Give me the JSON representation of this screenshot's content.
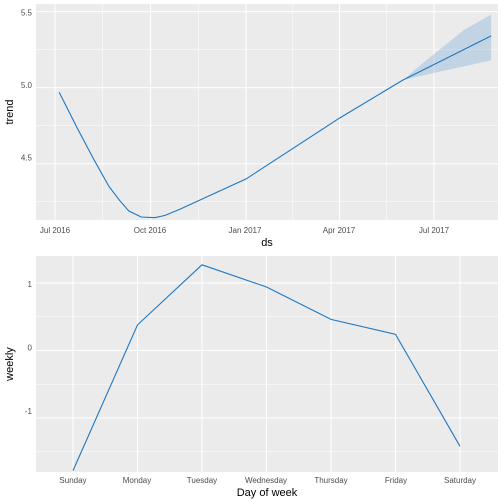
{
  "chart_data": [
    {
      "type": "line",
      "xlabel": "ds",
      "ylabel": "trend",
      "x_ticks": [
        "Jul 2016",
        "Oct 2016",
        "Jan 2017",
        "Apr 2017",
        "Jul 2017"
      ],
      "y_ticks": [
        "4.5",
        "5.0",
        "5.5"
      ],
      "ylim": [
        4.13,
        5.55
      ],
      "grid": true,
      "line_color": "#1f78c1",
      "band_color": "#1f78c1",
      "series": [
        {
          "x": [
            "2016-07-05",
            "2016-07-22",
            "2016-08-08",
            "2016-08-22",
            "2016-09-01",
            "2016-09-10",
            "2016-09-22",
            "2016-10-05",
            "2016-10-15",
            "2016-10-29",
            "2017-01-01",
            "2017-04-01",
            "2017-06-01",
            "2017-07-15",
            "2017-08-25"
          ],
          "y": [
            4.97,
            4.74,
            4.52,
            4.35,
            4.26,
            4.19,
            4.15,
            4.145,
            4.16,
            4.2,
            4.4,
            4.8,
            5.05,
            5.2,
            5.34
          ]
        }
      ],
      "uncertainty_band": {
        "x": [
          "2017-06-01",
          "2017-06-20",
          "2017-07-10",
          "2017-07-30",
          "2017-08-25"
        ],
        "lower": [
          5.05,
          5.08,
          5.11,
          5.14,
          5.18
        ],
        "upper": [
          5.05,
          5.16,
          5.27,
          5.38,
          5.48
        ]
      }
    },
    {
      "type": "line",
      "xlabel": "Day of week",
      "ylabel": "weekly",
      "categories": [
        "Sunday",
        "Monday",
        "Tuesday",
        "Wednesday",
        "Thursday",
        "Friday",
        "Saturday"
      ],
      "y_ticks": [
        "1",
        "0",
        "-1"
      ],
      "ylim": [
        -1.8,
        1.4
      ],
      "grid": true,
      "line_color": "#1f78c1",
      "series": [
        {
          "values": [
            -1.78,
            0.38,
            1.27,
            0.94,
            0.46,
            0.24,
            -1.42
          ]
        }
      ]
    }
  ]
}
